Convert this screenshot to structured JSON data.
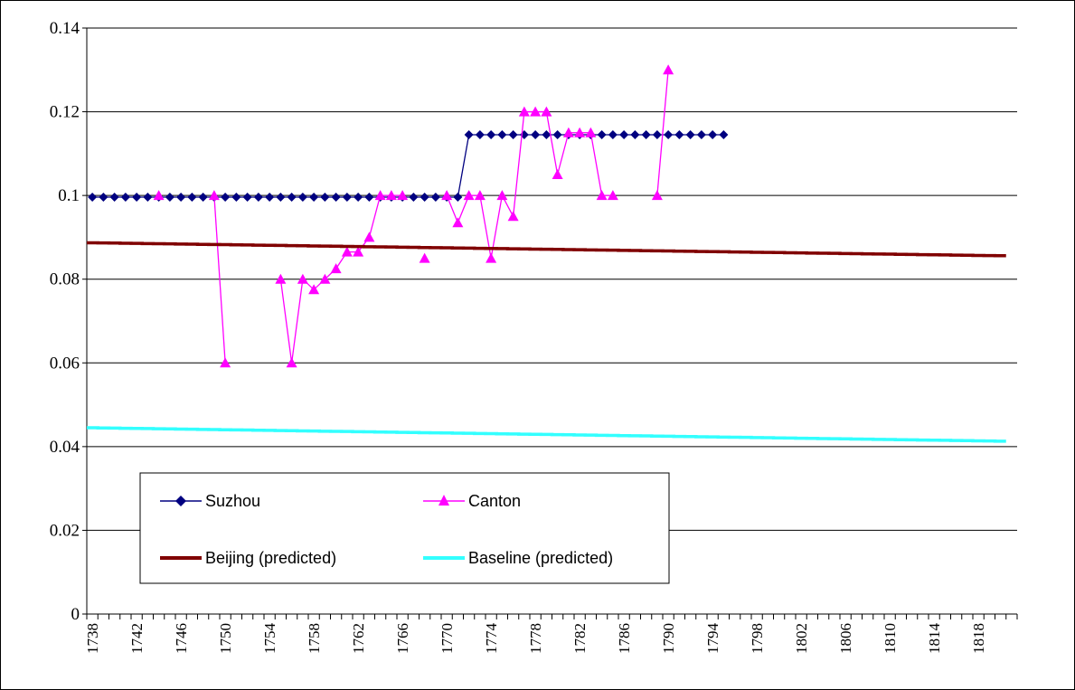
{
  "chart_data": {
    "type": "line",
    "title": "",
    "xlabel": "",
    "ylabel": "",
    "xlim": [
      1738,
      1821
    ],
    "ylim": [
      0,
      0.14
    ],
    "y_ticks": [
      "0",
      "0.02",
      "0.04",
      "0.06",
      "0.08",
      "0.1",
      "0.12",
      "0.14"
    ],
    "x_tick_start": 1738,
    "x_tick_end": 1818,
    "x_tick_step": 4,
    "grid": "horizontal",
    "legend_placement": "bottom-left",
    "series": [
      {
        "name": "Suzhou",
        "color": "#000080",
        "marker": "diamond",
        "points": [
          [
            1738,
            0.0996
          ],
          [
            1739,
            0.0996
          ],
          [
            1740,
            0.0996
          ],
          [
            1741,
            0.0996
          ],
          [
            1742,
            0.0996
          ],
          [
            1743,
            0.0996
          ],
          [
            1744,
            0.0996
          ],
          [
            1745,
            0.0996
          ],
          [
            1746,
            0.0996
          ],
          [
            1747,
            0.0996
          ],
          [
            1748,
            0.0996
          ],
          [
            1749,
            0.0996
          ],
          [
            1750,
            0.0996
          ],
          [
            1751,
            0.0996
          ],
          [
            1752,
            0.0996
          ],
          [
            1753,
            0.0996
          ],
          [
            1754,
            0.0996
          ],
          [
            1755,
            0.0996
          ],
          [
            1756,
            0.0996
          ],
          [
            1757,
            0.0996
          ],
          [
            1758,
            0.0996
          ],
          [
            1759,
            0.0996
          ],
          [
            1760,
            0.0996
          ],
          [
            1761,
            0.0996
          ],
          [
            1762,
            0.0996
          ],
          [
            1763,
            0.0996
          ],
          [
            1764,
            0.0996
          ],
          [
            1765,
            0.0996
          ],
          [
            1766,
            0.0996
          ],
          [
            1767,
            0.0996
          ],
          [
            1768,
            0.0996
          ],
          [
            1769,
            0.0996
          ],
          [
            1770,
            0.0996
          ],
          [
            1771,
            0.0996
          ],
          [
            1772,
            0.1145
          ],
          [
            1773,
            0.1145
          ],
          [
            1774,
            0.1145
          ],
          [
            1775,
            0.1145
          ],
          [
            1776,
            0.1145
          ],
          [
            1777,
            0.1145
          ],
          [
            1778,
            0.1145
          ],
          [
            1779,
            0.1145
          ],
          [
            1780,
            0.1145
          ],
          [
            1781,
            0.1145
          ],
          [
            1782,
            0.1145
          ],
          [
            1783,
            0.1145
          ],
          [
            1784,
            0.1145
          ],
          [
            1785,
            0.1145
          ],
          [
            1786,
            0.1145
          ],
          [
            1787,
            0.1145
          ],
          [
            1788,
            0.1145
          ],
          [
            1789,
            0.1145
          ],
          [
            1790,
            0.1145
          ],
          [
            1791,
            0.1145
          ],
          [
            1792,
            0.1145
          ],
          [
            1793,
            0.1145
          ],
          [
            1794,
            0.1145
          ],
          [
            1795,
            0.1145
          ]
        ]
      },
      {
        "name": "Canton",
        "color": "#ff00ff",
        "marker": "triangle",
        "segments": [
          [
            [
              1744,
              0.1
            ]
          ],
          [
            [
              1749,
              0.1
            ],
            [
              1750,
              0.06
            ]
          ],
          [
            [
              1755,
              0.08
            ],
            [
              1756,
              0.06
            ],
            [
              1757,
              0.08
            ],
            [
              1758,
              0.0775
            ],
            [
              1759,
              0.08
            ],
            [
              1760,
              0.0825
            ],
            [
              1761,
              0.0865
            ],
            [
              1762,
              0.0865
            ],
            [
              1763,
              0.09
            ],
            [
              1764,
              0.1
            ],
            [
              1765,
              0.1
            ],
            [
              1766,
              0.1
            ]
          ],
          [
            [
              1768,
              0.085
            ]
          ],
          [
            [
              1770,
              0.1
            ],
            [
              1771,
              0.0935
            ],
            [
              1772,
              0.1
            ],
            [
              1773,
              0.1
            ],
            [
              1774,
              0.085
            ],
            [
              1775,
              0.1
            ],
            [
              1776,
              0.095
            ],
            [
              1777,
              0.12
            ],
            [
              1778,
              0.12
            ],
            [
              1779,
              0.12
            ],
            [
              1780,
              0.105
            ],
            [
              1781,
              0.115
            ],
            [
              1782,
              0.115
            ],
            [
              1783,
              0.115
            ],
            [
              1784,
              0.1
            ],
            [
              1785,
              0.1
            ]
          ],
          [
            [
              1789,
              0.1
            ],
            [
              1790,
              0.13
            ]
          ]
        ]
      },
      {
        "name": "Beijing (predicted)",
        "color": "#800000",
        "marker": "none",
        "start": [
          1738,
          0.0887
        ],
        "end": [
          1820,
          0.0856
        ]
      },
      {
        "name": "Baseline (predicted)",
        "color": "#33ffff",
        "marker": "none",
        "start": [
          1738,
          0.0445
        ],
        "end": [
          1820,
          0.0413
        ]
      }
    ]
  }
}
